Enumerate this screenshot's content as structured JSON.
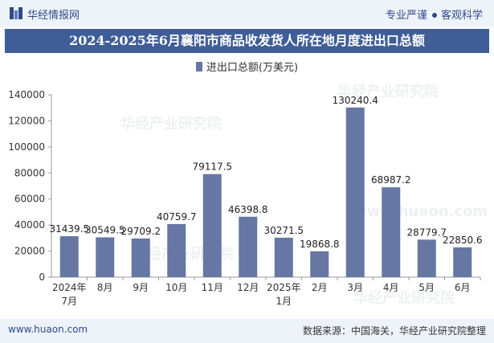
{
  "header": {
    "brand": "华经情报网",
    "tagline_left": "专业严谨",
    "tagline_right": "客观科学"
  },
  "title": "2024-2025年6月襄阳市商品收发货人所在地月度进出口总额",
  "watermarks": [
    "华经产业研究院",
    "www.huaon.com"
  ],
  "footer": {
    "website": "www.huaon.com",
    "source": "数据来源：中国海关，华经产业研究院整理"
  },
  "colors": {
    "bar": "#6677a3",
    "title_bg": "#3f5d97",
    "header_bg": "#eef3fa"
  },
  "chart_data": {
    "type": "bar",
    "title": "2024-2025年6月襄阳市商品收发货人所在地月度进出口总额",
    "xlabel": "",
    "ylabel": "",
    "legend_position": "top-center",
    "categories": [
      [
        "2024年",
        "7月"
      ],
      [
        "8月"
      ],
      [
        "9月"
      ],
      [
        "10月"
      ],
      [
        "11月"
      ],
      [
        "12月"
      ],
      [
        "2025年",
        "1月"
      ],
      [
        "2月"
      ],
      [
        "3月"
      ],
      [
        "4月"
      ],
      [
        "5月"
      ],
      [
        "6月"
      ]
    ],
    "series": [
      {
        "name": "进出口总额(万美元)",
        "values": [
          31439.5,
          30549.5,
          29709.2,
          40759.7,
          79117.5,
          46398.8,
          30271.5,
          19868.8,
          130240.4,
          68987.2,
          28779.7,
          22850.6
        ],
        "labels": [
          "31439.5",
          "30549.5",
          "29709.2",
          "40759.7",
          "79117.5",
          "46398.8",
          "30271.5",
          "19868.8",
          "130240.4",
          "68987.2",
          "28779.7",
          "22850.6"
        ]
      }
    ],
    "ylim": [
      0,
      140000
    ],
    "yticks": [
      0,
      20000,
      40000,
      60000,
      80000,
      100000,
      120000,
      140000
    ],
    "grid": false
  }
}
